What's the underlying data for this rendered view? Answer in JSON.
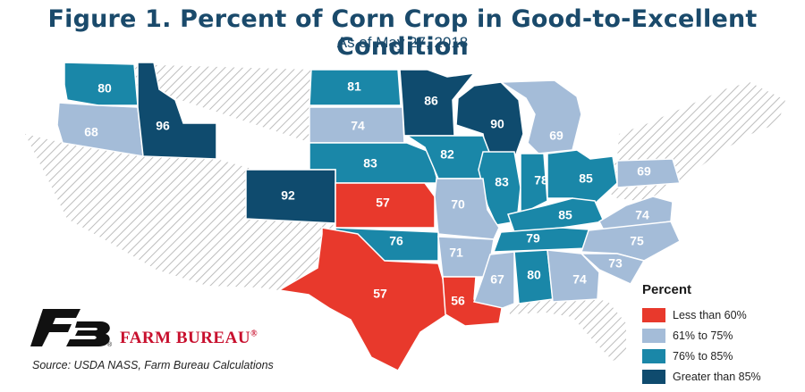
{
  "title": "Figure 1. Percent of Corn Crop in Good-to-Excellent Condition",
  "subtitle": "As of May 27, 2018",
  "colors": {
    "lt60": "#e8392c",
    "c61_75": "#a4bcd8",
    "c76_85": "#1a87a8",
    "gt85": "#0f4b6e",
    "hatch": "#bdbdbd"
  },
  "states": [
    {
      "id": "wa",
      "value": "80",
      "category": "c76_85"
    },
    {
      "id": "or",
      "value": "68",
      "category": "c61_75"
    },
    {
      "id": "id",
      "value": "96",
      "category": "gt85"
    },
    {
      "id": "nd",
      "value": "81",
      "category": "c76_85"
    },
    {
      "id": "mn",
      "value": "86",
      "category": "gt85"
    },
    {
      "id": "sd",
      "value": "74",
      "category": "c61_75"
    },
    {
      "id": "wi",
      "value": "90",
      "category": "gt85"
    },
    {
      "id": "mi",
      "value": "69",
      "category": "c61_75"
    },
    {
      "id": "ne",
      "value": "83",
      "category": "c76_85"
    },
    {
      "id": "ia",
      "value": "82",
      "category": "c76_85"
    },
    {
      "id": "il",
      "value": "83",
      "category": "c76_85"
    },
    {
      "id": "in",
      "value": "78",
      "category": "c76_85"
    },
    {
      "id": "oh",
      "value": "85",
      "category": "c76_85"
    },
    {
      "id": "pa",
      "value": "69",
      "category": "c61_75"
    },
    {
      "id": "co",
      "value": "92",
      "category": "gt85"
    },
    {
      "id": "ks",
      "value": "57",
      "category": "lt60"
    },
    {
      "id": "mo",
      "value": "70",
      "category": "c61_75"
    },
    {
      "id": "ky",
      "value": "85",
      "category": "c76_85"
    },
    {
      "id": "va",
      "value": "74",
      "category": "c61_75"
    },
    {
      "id": "ok",
      "value": "76",
      "category": "c76_85"
    },
    {
      "id": "ar",
      "value": "71",
      "category": "c61_75"
    },
    {
      "id": "tn",
      "value": "79",
      "category": "c76_85"
    },
    {
      "id": "nc",
      "value": "75",
      "category": "c61_75"
    },
    {
      "id": "sc",
      "value": "73",
      "category": "c61_75"
    },
    {
      "id": "tx",
      "value": "57",
      "category": "lt60"
    },
    {
      "id": "la",
      "value": "56",
      "category": "lt60"
    },
    {
      "id": "ms",
      "value": "67",
      "category": "c61_75"
    },
    {
      "id": "al",
      "value": "80",
      "category": "c76_85"
    },
    {
      "id": "ga",
      "value": "74",
      "category": "c61_75"
    }
  ],
  "legend": {
    "title": "Percent",
    "items": [
      {
        "label": "Less than 60%",
        "category": "lt60"
      },
      {
        "label": "61% to 75%",
        "category": "c61_75"
      },
      {
        "label": "76% to 85%",
        "category": "c76_85"
      },
      {
        "label": "Greater than 85%",
        "category": "gt85"
      }
    ]
  },
  "brand": {
    "name": "FARM BUREAU",
    "mark": "®",
    "logo_mark": "®"
  },
  "source": "Source: USDA NASS, Farm Bureau Calculations"
}
